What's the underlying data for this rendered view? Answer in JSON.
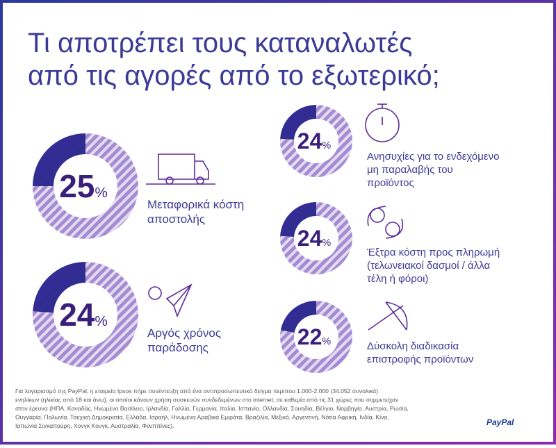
{
  "title_lines": [
    "Τι αποτρέπει τους καταναλωτές",
    "από τις αγορές από το εξωτερικό;"
  ],
  "unit": "%",
  "chart_data": [
    {
      "type": "donut",
      "values": [
        25
      ],
      "label": [
        "Μεταφορικά κόστη",
        "αποστολής"
      ]
    },
    {
      "type": "donut",
      "values": [
        24
      ],
      "label": [
        "Αργός χρόνος",
        "παράδοσης"
      ]
    },
    {
      "type": "donut",
      "values": [
        24
      ],
      "label": [
        "Ανησυχίες για το ενδεχόμενο",
        "μη παραλαβής του",
        "προϊόντος"
      ]
    },
    {
      "type": "donut",
      "values": [
        24
      ],
      "label": [
        "Έξτρα κόστη προς πληρωμή",
        "(τελωνειακοί δασμοί / άλλα",
        "τέλη ή φόροι)"
      ]
    },
    {
      "type": "donut",
      "values": [
        22
      ],
      "label": [
        "Δύσκολη διαδικασία",
        "επιστροφής προϊόντων"
      ]
    }
  ],
  "footnote": [
    "Για λογαριασμό της PayPal, η εταιρεία Ipsos πήρε συνέντευξη από ένα αντιπροσωπευτικό δείγμα περίπου 1.000-2.000 (34.052 συνολικά)",
    "ενηλίκων (ηλικίας από 18 και άνω), οι οποίοι κάνουν χρήση συσκευών συνδεδεμένων στο internet, σε καθεμία από τις 31 χώρες που συμμετείχαν",
    "στην έρευνα (ΗΠΑ, Καναδάς, Ηνωμένο Βασίλειο, Ιρλανδία, Γαλλία, Γερμανία, Ιταλία, Ισπανία, Ολλανδία, Σουηδία, Βέλγιο, Νορβηγία, Αυστρία, Ρωσία,",
    "Ουγγαρία, Πολωνία, Τσεχική Δημοκρατία, Ελλάδα, Ισραήλ, Ηνωμένα Αραβικά Εμιράτα, Βραζιλία, Μεξικό, Αργεντινή, Νότια Αφρική, Ινδία, Κίνα,",
    "Ιαπωνία Σιγκαπούρη, Χονγκ Κονγκ, Αυστραλία, Φιλιππίνες)."
  ],
  "brand": "PayPal"
}
